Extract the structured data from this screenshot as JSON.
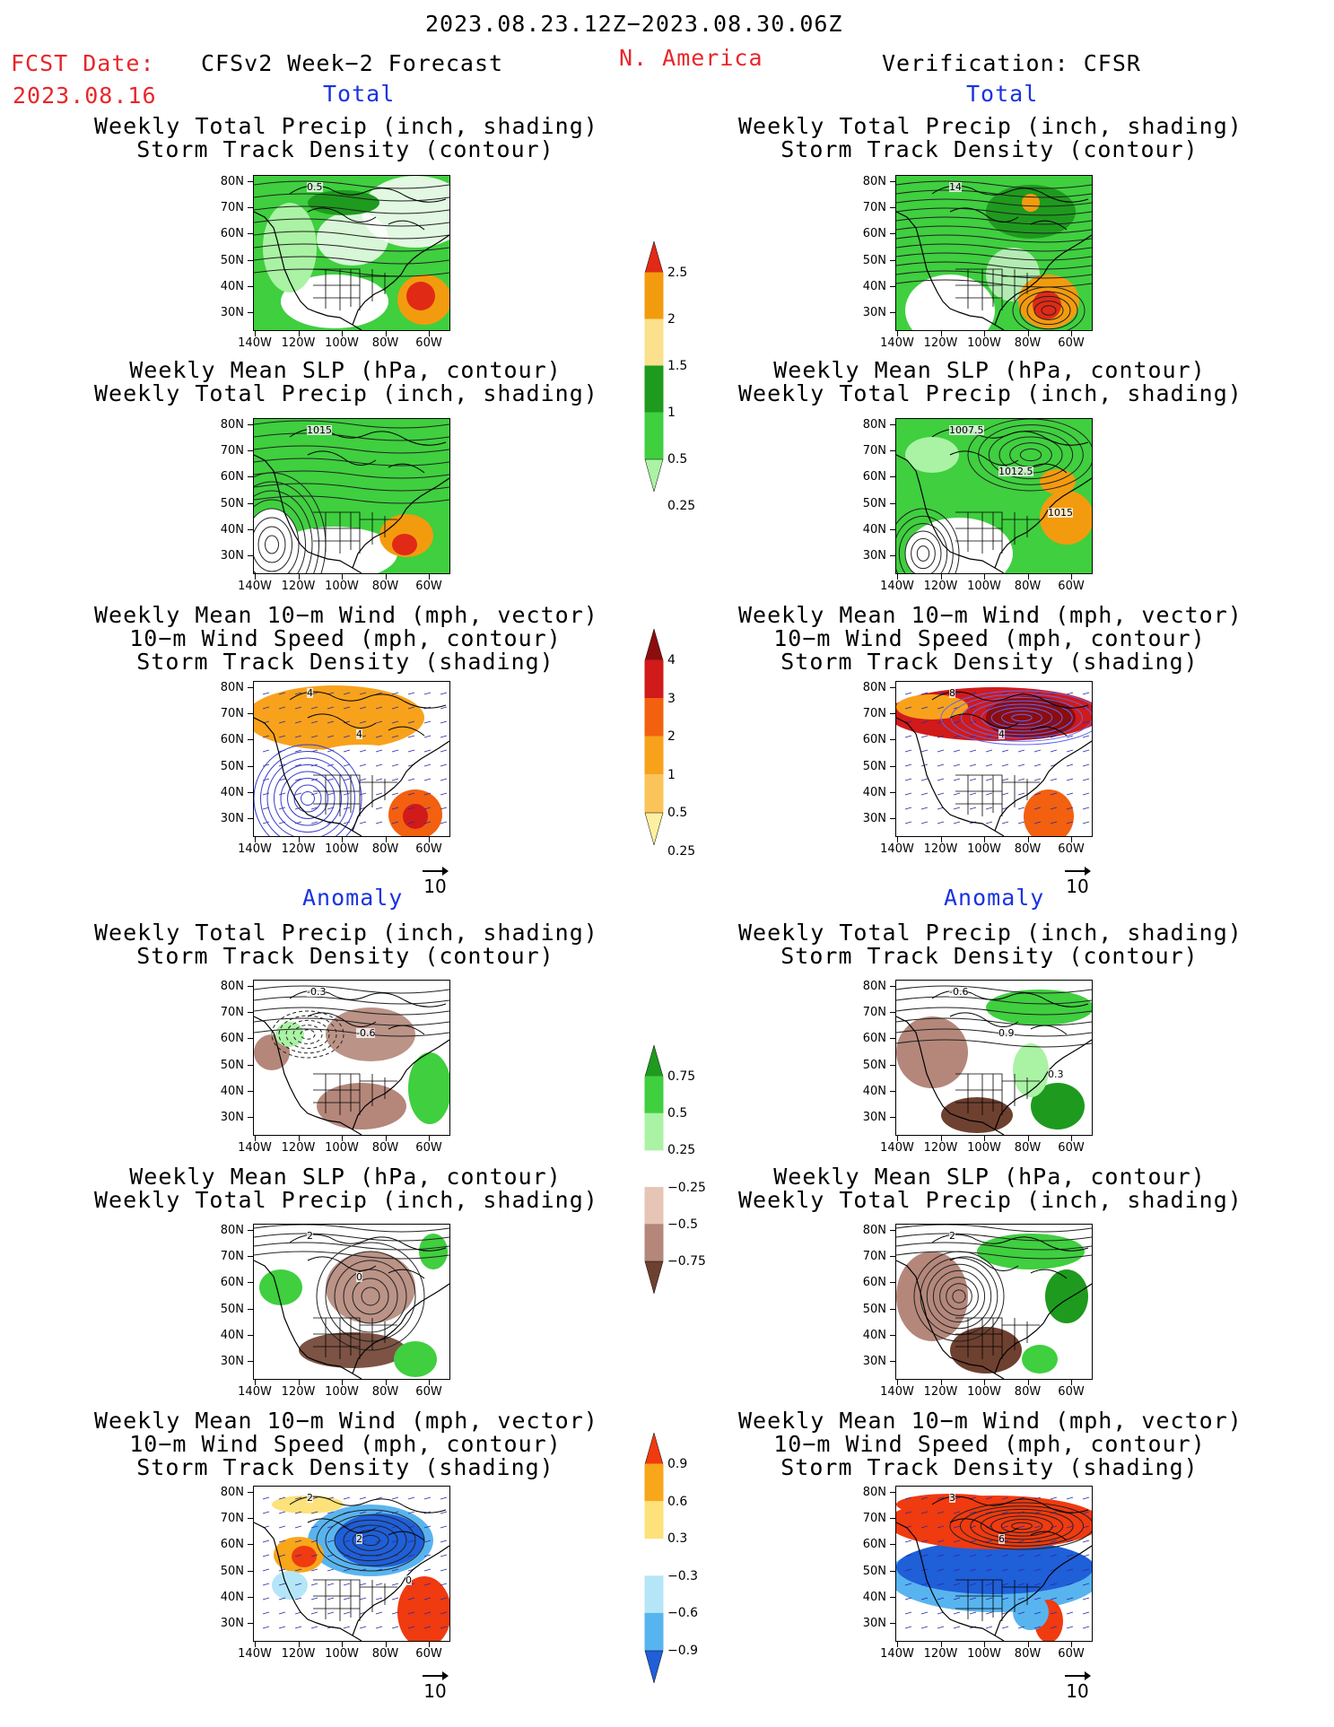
{
  "header": {
    "period": "2023.08.23.12Z−2023.08.30.06Z",
    "fcst_label": "FCST Date:",
    "fcst_date": "2023.08.16",
    "left_title": "CFSv2 Week−2 Forecast",
    "region": "N. America",
    "right_title": "Verification: CFSR"
  },
  "sections": {
    "total": "Total",
    "anomaly": "Anomaly"
  },
  "titles": {
    "precip_storm": [
      "Weekly Total Precip (inch, shading)",
      "Storm Track Density (contour)"
    ],
    "slp_precip": [
      "Weekly Mean SLP (hPa, contour)",
      "Weekly Total Precip (inch, shading)"
    ],
    "wind_storm": [
      "Weekly Mean 10−m Wind (mph, vector)",
      "10−m Wind Speed (mph, contour)",
      "Storm Track Density (shading)"
    ]
  },
  "axes": {
    "lat_labels": [
      "80N",
      "70N",
      "60N",
      "50N",
      "40N",
      "30N"
    ],
    "lon_labels": [
      "140W",
      "120W",
      "100W",
      "80W",
      "60W"
    ]
  },
  "vector_reference": "10",
  "contour_labels": {
    "fc_total_precip": "0.5",
    "ob_total_precip": "14",
    "fc_total_slp": "1015",
    "ob_total_slp": [
      "1007.5",
      "1012.5",
      "1015"
    ],
    "fc_total_wind": [
      "4",
      "4"
    ],
    "ob_total_wind": [
      "8",
      "4"
    ],
    "fc_anom_precip": [
      "-0.3",
      "-0.6"
    ],
    "ob_anom_precip": [
      "-0.6",
      "0.9",
      "0.3"
    ],
    "fc_anom_slp": [
      "2",
      "0"
    ],
    "ob_anom_slp": "2",
    "fc_anom_wind": [
      "2",
      "2",
      "0"
    ],
    "ob_anom_wind": [
      "3",
      "6"
    ]
  },
  "colorbars": {
    "precip_total": {
      "labels": [
        "2.5",
        "2",
        "1.5",
        "1",
        "0.5",
        "0.25"
      ],
      "colors": [
        "#e02a16",
        "#f39b0e",
        "#fbe08e",
        "#1e9a1e",
        "#3fcf3f",
        "#aaf2a4"
      ]
    },
    "storm_total": {
      "labels": [
        "4",
        "3",
        "2",
        "1",
        "0.5",
        "0.25"
      ],
      "colors": [
        "#8c0d0d",
        "#d11a1a",
        "#f26010",
        "#f8a21c",
        "#fbc45a",
        "#fdf0a0"
      ]
    },
    "precip_anom": {
      "labels": [
        "0.75",
        "0.5",
        "0.25",
        "−0.25",
        "−0.5",
        "−0.75"
      ],
      "colors": [
        "#1e9a1e",
        "#3fcf3f",
        "#aaf2a4",
        "#ffffff",
        "#e6c4b6",
        "#b4877a",
        "#6e4030"
      ]
    },
    "storm_anom": {
      "labels": [
        "0.9",
        "0.6",
        "0.3",
        "−0.3",
        "−0.6",
        "−0.9"
      ],
      "colors": [
        "#f03a10",
        "#f8a61a",
        "#fde17a",
        "#ffffff",
        "#b4e6f8",
        "#58b4ef",
        "#1f5fd8"
      ]
    }
  },
  "colors": {
    "red_text": "#e8262a",
    "blue_text": "#1a33e0",
    "precip_green": "#3fcf3f",
    "precip_dark_green": "#1e9a1e",
    "precip_light_green": "#aaf2a4",
    "dry_brown": "#b4877a",
    "storm_orange": "#f8a21c",
    "storm_red": "#d11a1a",
    "anom_blue": "#1f5fd8"
  }
}
